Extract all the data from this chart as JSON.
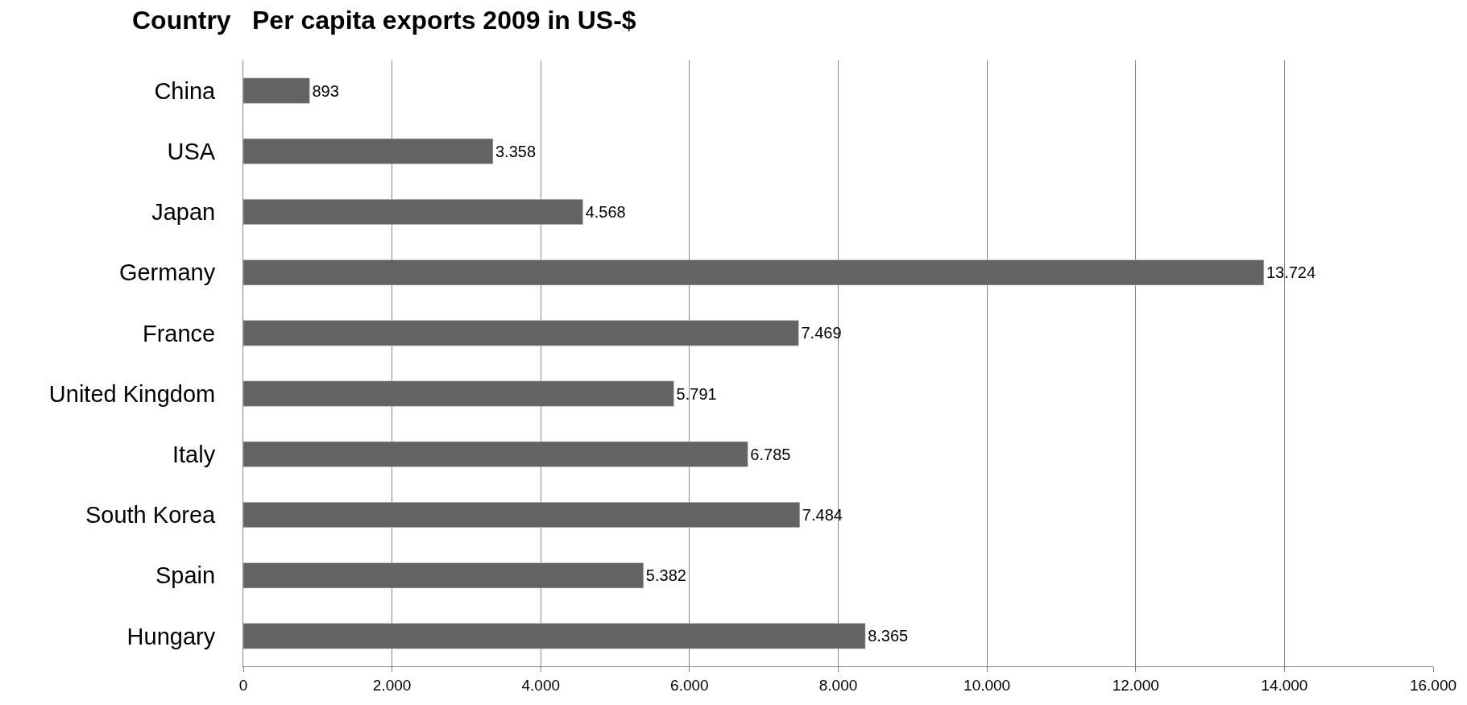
{
  "chart_data": {
    "type": "bar",
    "orientation": "horizontal",
    "title": "Per capita exports 2009 in US-$",
    "ylabel": "Country",
    "categories": [
      "China",
      "USA",
      "Japan",
      "Germany",
      "France",
      "United Kingdom",
      "Italy",
      "South Korea",
      "Spain",
      "Hungary"
    ],
    "values": [
      893,
      3358,
      4568,
      13724,
      7469,
      5791,
      6785,
      7484,
      5382,
      8365
    ],
    "value_labels": [
      "893",
      "3.358",
      "4.568",
      "13.724",
      "7.469",
      "5.791",
      "6.785",
      "7.484",
      "5.382",
      "8.365"
    ],
    "color": "#636363",
    "xlim": [
      0,
      16000
    ],
    "xticks": [
      {
        "value": 0,
        "label": "0"
      },
      {
        "value": 2000,
        "label": "2.000"
      },
      {
        "value": 4000,
        "label": "4.000"
      },
      {
        "value": 6000,
        "label": "6.000"
      },
      {
        "value": 8000,
        "label": "8.000"
      },
      {
        "value": 10000,
        "label": "10.000"
      },
      {
        "value": 12000,
        "label": "12.000"
      },
      {
        "value": 14000,
        "label": "14.000"
      },
      {
        "value": 16000,
        "label": "16.000"
      }
    ],
    "grid": "x"
  }
}
